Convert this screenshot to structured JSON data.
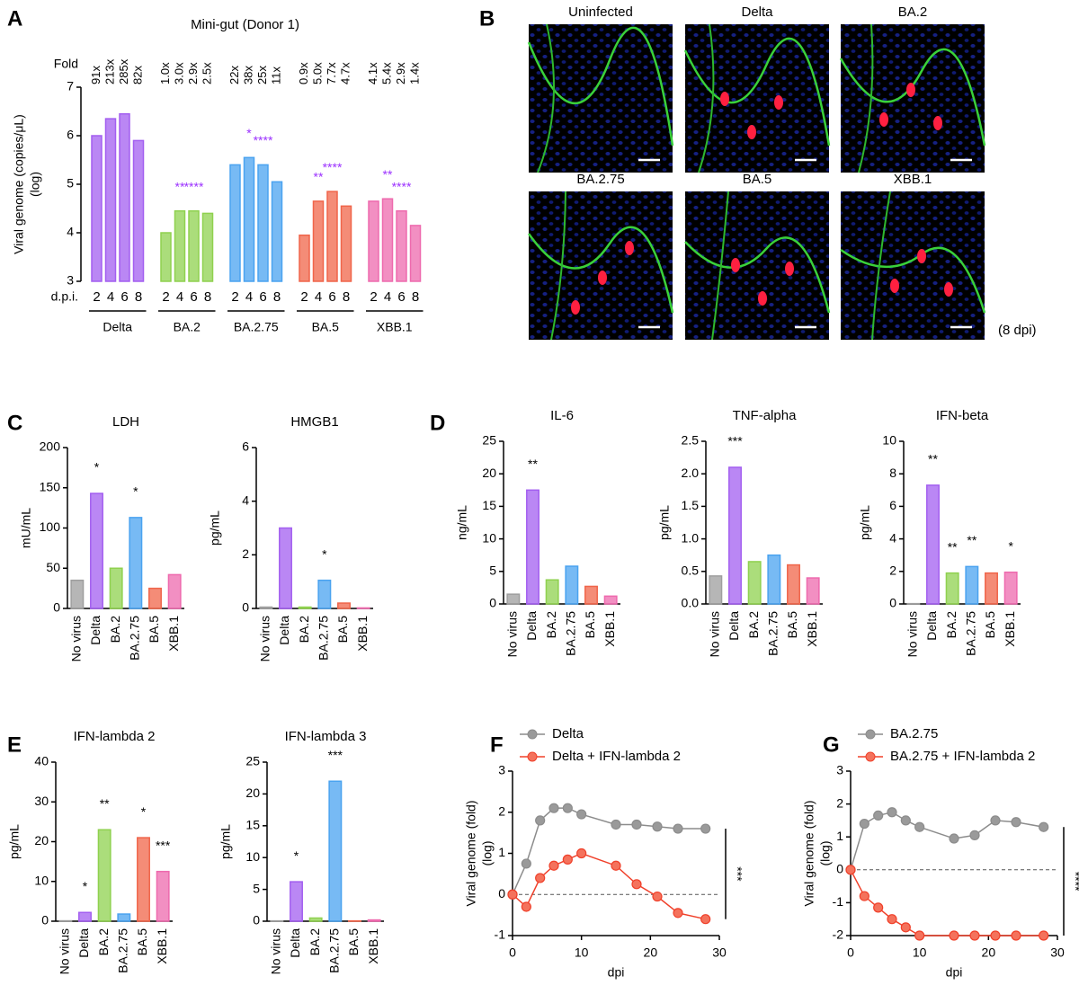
{
  "chart_data": [
    {
      "type": "grouped-bar",
      "panel": "A",
      "title": "Mini-gut (Donor 1)",
      "ylabel": [
        "Viral genome (copies/μL)",
        "(log)"
      ],
      "fold_title": "Fold",
      "x_title": "d.p.i.",
      "categories": [
        "2",
        "4",
        "6",
        "8"
      ],
      "ylim": [
        3,
        7
      ],
      "yticks": [
        3,
        4,
        5,
        6,
        7
      ],
      "annotation_color": "#9b30ff",
      "series": [
        {
          "name": "Delta",
          "color": "#a35ff0",
          "values": [
            6.0,
            6.35,
            6.45,
            5.9
          ],
          "fold_labels": [
            "91x",
            "213x",
            "285x",
            "82x"
          ],
          "annotations": [
            null,
            null,
            null,
            null
          ]
        },
        {
          "name": "BA.2",
          "color": "#8fd14f",
          "values": [
            4.0,
            4.45,
            4.45,
            4.4
          ],
          "fold_labels": [
            "1.0x",
            "3.0x",
            "2.9x",
            "2.5x"
          ],
          "annotations": [
            null,
            "**",
            "****",
            null
          ]
        },
        {
          "name": "BA.2.75",
          "color": "#4aa3f0",
          "values": [
            5.4,
            5.55,
            5.4,
            5.05
          ],
          "fold_labels": [
            "22x",
            "38x",
            "25x",
            "11x"
          ],
          "annotations": [
            null,
            "*",
            "****",
            null
          ]
        },
        {
          "name": "BA.5",
          "color": "#f0654a",
          "values": [
            3.95,
            4.65,
            4.85,
            4.55
          ],
          "fold_labels": [
            "0.9x",
            "5.0x",
            "7.7x",
            "4.7x"
          ],
          "annotations": [
            null,
            "**",
            "****",
            null
          ]
        },
        {
          "name": "XBB.1",
          "color": "#ee6aae",
          "values": [
            4.65,
            4.7,
            4.45,
            4.15
          ],
          "fold_labels": [
            "4.1x",
            "5.4x",
            "2.9x",
            "1.4x"
          ],
          "annotations": [
            null,
            "**",
            "****",
            null
          ]
        }
      ]
    },
    {
      "type": "image-grid",
      "panel": "B",
      "titles": [
        "Uninfected",
        "Delta",
        "BA.2",
        "BA.2.75",
        "BA.5",
        "XBB.1"
      ],
      "note": "(8 dpi)"
    },
    {
      "type": "bar",
      "panel": "C",
      "title": "LDH",
      "ylabel": "mU/mL",
      "categories": [
        "No virus",
        "Delta",
        "BA.2",
        "BA.2.75",
        "BA.5",
        "XBB.1"
      ],
      "colors": [
        "#9e9e9e",
        "#a35ff0",
        "#8fd14f",
        "#4aa3f0",
        "#f0654a",
        "#ee6aae"
      ],
      "values": [
        35,
        143,
        50,
        113,
        25,
        42
      ],
      "annotations": [
        null,
        "*",
        null,
        "*",
        null,
        null
      ],
      "ylim": [
        0,
        200
      ],
      "yticks": [
        0,
        50,
        100,
        150,
        200
      ]
    },
    {
      "type": "bar",
      "title": "HMGB1",
      "ylabel": "pg/mL",
      "categories": [
        "No virus",
        "Delta",
        "BA.2",
        "BA.2.75",
        "BA.5",
        "XBB.1"
      ],
      "colors": [
        "#9e9e9e",
        "#a35ff0",
        "#8fd14f",
        "#4aa3f0",
        "#f0654a",
        "#ee6aae"
      ],
      "values": [
        0.05,
        3.0,
        0.05,
        1.05,
        0.2,
        0.02
      ],
      "annotations": [
        null,
        null,
        null,
        "*",
        null,
        null
      ],
      "ylim": [
        0,
        6
      ],
      "yticks": [
        0,
        2,
        4,
        6
      ]
    },
    {
      "type": "bar",
      "panel": "D",
      "title": "IL-6",
      "ylabel": "ng/mL",
      "categories": [
        "No virus",
        "Delta",
        "BA.2",
        "BA.2.75",
        "BA.5",
        "XBB.1"
      ],
      "colors": [
        "#9e9e9e",
        "#a35ff0",
        "#8fd14f",
        "#4aa3f0",
        "#f0654a",
        "#ee6aae"
      ],
      "values": [
        1.5,
        17.5,
        3.7,
        5.8,
        2.7,
        1.2
      ],
      "annotations": [
        null,
        "**",
        null,
        null,
        null,
        null
      ],
      "ylim": [
        0,
        25
      ],
      "yticks": [
        0,
        5,
        10,
        15,
        20,
        25
      ]
    },
    {
      "type": "bar",
      "title": "TNF-alpha",
      "ylabel": "pg/mL",
      "categories": [
        "No virus",
        "Delta",
        "BA.2",
        "BA.2.75",
        "BA.5",
        "XBB.1"
      ],
      "colors": [
        "#9e9e9e",
        "#a35ff0",
        "#8fd14f",
        "#4aa3f0",
        "#f0654a",
        "#ee6aae"
      ],
      "values": [
        0.43,
        2.1,
        0.65,
        0.75,
        0.6,
        0.4
      ],
      "annotations": [
        null,
        "***",
        null,
        null,
        null,
        null
      ],
      "ylim": [
        0,
        2.5
      ],
      "yticks": [
        {
          "value": 0,
          "label": "0.0"
        },
        0.5,
        {
          "value": 1,
          "label": "1.0"
        },
        1.5,
        {
          "value": 2,
          "label": "2.0"
        },
        2.5
      ]
    },
    {
      "type": "bar",
      "title": "IFN-beta",
      "ylabel": "pg/mL",
      "categories": [
        "No virus",
        "Delta",
        "BA.2",
        "BA.2.75",
        "BA.5",
        "XBB.1"
      ],
      "colors": [
        "#9e9e9e",
        "#a35ff0",
        "#8fd14f",
        "#4aa3f0",
        "#f0654a",
        "#ee6aae"
      ],
      "values": [
        0.02,
        7.3,
        1.9,
        2.3,
        1.9,
        1.95
      ],
      "annotations": [
        null,
        "**",
        "**",
        "**",
        null,
        "*"
      ],
      "ylim": [
        0,
        10
      ],
      "yticks": [
        0,
        2,
        4,
        6,
        8,
        10
      ]
    },
    {
      "type": "bar",
      "panel": "E",
      "title": "IFN-lambda 2",
      "ylabel": "pg/mL",
      "categories": [
        "No virus",
        "Delta",
        "BA.2",
        "BA.2.75",
        "BA.5",
        "XBB.1"
      ],
      "colors": [
        "#9e9e9e",
        "#a35ff0",
        "#8fd14f",
        "#4aa3f0",
        "#f0654a",
        "#ee6aae"
      ],
      "values": [
        0.1,
        2.2,
        23,
        1.8,
        21,
        12.5
      ],
      "annotations": [
        null,
        "*",
        "**",
        null,
        "*",
        "***"
      ],
      "ylim": [
        0,
        40
      ],
      "yticks": [
        0,
        10,
        20,
        30,
        40
      ]
    },
    {
      "type": "bar",
      "title": "IFN-lambda 3",
      "ylabel": "pg/mL",
      "categories": [
        "No virus",
        "Delta",
        "BA.2",
        "BA.2.75",
        "BA.5",
        "XBB.1"
      ],
      "colors": [
        "#9e9e9e",
        "#a35ff0",
        "#8fd14f",
        "#4aa3f0",
        "#f0654a",
        "#ee6aae"
      ],
      "values": [
        0.05,
        6.2,
        0.5,
        22,
        0.05,
        0.2
      ],
      "annotations": [
        null,
        "*",
        null,
        "***",
        null,
        null
      ],
      "ylim": [
        0,
        25
      ],
      "yticks": [
        0,
        5,
        10,
        15,
        20,
        25
      ]
    },
    {
      "type": "line",
      "panel": "F",
      "xlabel": "dpi",
      "ylabel": [
        "Viral genome (fold)",
        "(log)"
      ],
      "xlim": [
        0,
        30
      ],
      "xticks": [
        0,
        10,
        20,
        30
      ],
      "ylim": [
        -1,
        3
      ],
      "yticks": [
        -1,
        0,
        1,
        2,
        3
      ],
      "reference_line": 0,
      "significance": "***",
      "series": [
        {
          "name": "Delta",
          "color": "#8c8c8c",
          "x": [
            0,
            2,
            4,
            6,
            8,
            10,
            15,
            18,
            21,
            24,
            28
          ],
          "values": [
            0,
            0.75,
            1.8,
            2.1,
            2.1,
            1.95,
            1.7,
            1.7,
            1.65,
            1.6,
            1.6
          ]
        },
        {
          "name": "Delta + IFN-lambda 2",
          "color": "#f0402a",
          "x": [
            0,
            2,
            4,
            6,
            8,
            10,
            15,
            18,
            21,
            24,
            28
          ],
          "values": [
            0,
            -0.3,
            0.4,
            0.7,
            0.85,
            1.0,
            0.7,
            0.25,
            -0.05,
            -0.45,
            -0.6
          ]
        }
      ]
    },
    {
      "type": "line",
      "panel": "G",
      "xlabel": "dpi",
      "ylabel": [
        "Viral genome (fold)",
        "(log)"
      ],
      "xlim": [
        0,
        30
      ],
      "xticks": [
        0,
        10,
        20,
        30
      ],
      "ylim": [
        -2,
        3
      ],
      "yticks": [
        -2,
        -1,
        0,
        1,
        2,
        3
      ],
      "reference_line": 0,
      "significance": "****",
      "series": [
        {
          "name": "BA.2.75",
          "color": "#8c8c8c",
          "x": [
            0,
            2,
            4,
            6,
            8,
            10,
            15,
            18,
            21,
            24,
            28
          ],
          "values": [
            0,
            1.4,
            1.65,
            1.75,
            1.5,
            1.3,
            0.95,
            1.05,
            1.5,
            1.45,
            1.3
          ]
        },
        {
          "name": "BA.2.75 + IFN-lambda 2",
          "color": "#f0402a",
          "x": [
            0,
            2,
            4,
            6,
            8,
            10,
            15,
            18,
            21,
            24,
            28
          ],
          "values": [
            0,
            -0.8,
            -1.15,
            -1.5,
            -1.75,
            -2,
            -2,
            -2,
            -2,
            -2,
            -2
          ]
        }
      ]
    }
  ]
}
